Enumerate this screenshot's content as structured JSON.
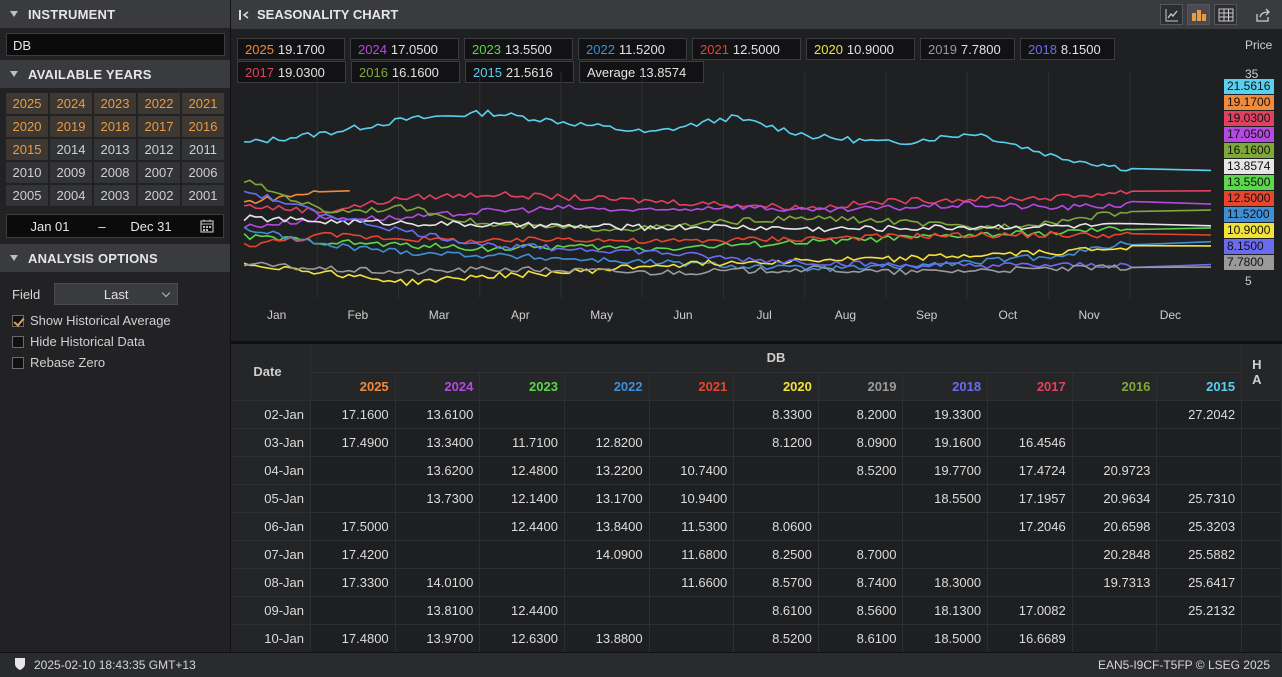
{
  "instrument": {
    "header": "INSTRUMENT",
    "value": "DB"
  },
  "years": {
    "header": "AVAILABLE YEARS",
    "list": [
      "2025",
      "2024",
      "2023",
      "2022",
      "2021",
      "2020",
      "2019",
      "2018",
      "2017",
      "2016",
      "2015",
      "2014",
      "2013",
      "2012",
      "2011",
      "2010",
      "2009",
      "2008",
      "2007",
      "2006",
      "2005",
      "2004",
      "2003",
      "2002",
      "2001"
    ],
    "selected": [
      "2025",
      "2024",
      "2023",
      "2022",
      "2021",
      "2020",
      "2019",
      "2018",
      "2017",
      "2016",
      "2015"
    ]
  },
  "date_range": {
    "from": "Jan 01",
    "sep": "–",
    "to": "Dec 31"
  },
  "analysis": {
    "header": "ANALYSIS OPTIONS",
    "field_label": "Field",
    "field_value": "Last",
    "options": [
      {
        "label": "Show Historical Average",
        "checked": true
      },
      {
        "label": "Hide Historical Data",
        "checked": false
      },
      {
        "label": "Rebase Zero",
        "checked": false
      }
    ]
  },
  "chart": {
    "header": "SEASONALITY CHART",
    "price_label": "Price",
    "tick_35": "35",
    "tick_5": "5",
    "legend": [
      {
        "name": "2025",
        "value": "19.1700",
        "color": "#f08a3c"
      },
      {
        "name": "2024",
        "value": "17.0500",
        "color": "#b44ae0"
      },
      {
        "name": "2023",
        "value": "13.5500",
        "color": "#5cd64a"
      },
      {
        "name": "2022",
        "value": "11.5200",
        "color": "#3f8fd6"
      },
      {
        "name": "2021",
        "value": "12.5000",
        "color": "#e8452f"
      },
      {
        "name": "2020",
        "value": "10.9000",
        "color": "#f2e23a"
      },
      {
        "name": "2019",
        "value": "7.7800",
        "color": "#9a9a9a"
      },
      {
        "name": "2018",
        "value": "8.1500",
        "color": "#6a6cf0"
      },
      {
        "name": "2017",
        "value": "19.0300",
        "color": "#e0415e"
      },
      {
        "name": "2016",
        "value": "16.1600",
        "color": "#7fa83a"
      },
      {
        "name": "2015",
        "value": "21.5616",
        "color": "#5ad0f0"
      },
      {
        "name": "Average",
        "value": "13.8574",
        "color": "#e6e6e6"
      }
    ],
    "price_tags": [
      {
        "value": "21.5616",
        "color": "#5ad0f0"
      },
      {
        "value": "19.1700",
        "color": "#f08a3c"
      },
      {
        "value": "19.0300",
        "color": "#e0415e"
      },
      {
        "value": "17.0500",
        "color": "#b44ae0"
      },
      {
        "value": "16.1600",
        "color": "#7fa83a"
      },
      {
        "value": "13.8574",
        "color": "#e6e6e6"
      },
      {
        "value": "13.5500",
        "color": "#5cd64a"
      },
      {
        "value": "12.5000",
        "color": "#e8452f"
      },
      {
        "value": "11.5200",
        "color": "#3f8fd6"
      },
      {
        "value": "10.9000",
        "color": "#f2e23a"
      },
      {
        "value": "8.1500",
        "color": "#6a6cf0"
      },
      {
        "value": "7.7800",
        "color": "#9a9a9a"
      }
    ],
    "months": [
      "Jan",
      "Feb",
      "Mar",
      "Apr",
      "May",
      "Jun",
      "Jul",
      "Aug",
      "Sep",
      "Oct",
      "Nov",
      "Dec"
    ]
  },
  "chart_data": {
    "type": "line",
    "ylabel": "Price",
    "ylim": [
      5,
      35
    ],
    "x": [
      "Jan",
      "Feb",
      "Mar",
      "Apr",
      "May",
      "Jun",
      "Jul",
      "Aug",
      "Sep",
      "Oct",
      "Nov",
      "Dec"
    ],
    "series": [
      {
        "name": "2015",
        "color": "#5ad0f0",
        "values": [
          26.0,
          27.5,
          29.5,
          30.5,
          29.0,
          27.5,
          29.8,
          27.0,
          26.0,
          27.5,
          24.0,
          22.0
        ]
      },
      {
        "name": "2025",
        "color": "#f08a3c",
        "values": [
          17.3,
          19.0,
          null,
          null,
          null,
          null,
          null,
          null,
          null,
          null,
          null,
          null
        ]
      },
      {
        "name": "2017",
        "color": "#e0415e",
        "values": [
          16.8,
          16.0,
          18.0,
          18.5,
          18.0,
          17.5,
          17.0,
          16.5,
          17.5,
          17.8,
          18.0,
          19.0
        ]
      },
      {
        "name": "2024",
        "color": "#b44ae0",
        "values": [
          13.7,
          15.0,
          15.0,
          16.0,
          16.5,
          16.0,
          16.8,
          16.0,
          16.5,
          17.0,
          16.5,
          17.05
        ]
      },
      {
        "name": "2016",
        "color": "#7fa83a",
        "values": [
          20.5,
          16.0,
          16.5,
          14.0,
          13.5,
          13.5,
          14.5,
          15.0,
          14.5,
          13.5,
          14.5,
          16.16
        ]
      },
      {
        "name": "Average",
        "color": "#e6e6e6",
        "values": [
          15.0,
          14.5,
          14.3,
          14.0,
          13.8,
          13.6,
          13.7,
          13.4,
          13.5,
          13.7,
          13.8,
          13.86
        ]
      },
      {
        "name": "2023",
        "color": "#5cd64a",
        "values": [
          12.3,
          11.5,
          11.0,
          10.5,
          10.8,
          10.5,
          11.0,
          11.5,
          12.0,
          12.5,
          12.8,
          13.55
        ]
      },
      {
        "name": "2021",
        "color": "#e8452f",
        "values": [
          11.0,
          12.5,
          12.0,
          11.5,
          12.0,
          11.5,
          11.8,
          12.0,
          12.3,
          12.5,
          12.5,
          12.5
        ]
      },
      {
        "name": "2022",
        "color": "#3f8fd6",
        "values": [
          13.5,
          11.0,
          10.0,
          9.5,
          9.0,
          8.5,
          8.0,
          7.5,
          7.8,
          8.5,
          9.5,
          11.52
        ]
      },
      {
        "name": "2020",
        "color": "#f2e23a",
        "values": [
          8.3,
          7.0,
          5.5,
          6.5,
          7.0,
          8.0,
          8.5,
          8.8,
          9.0,
          9.5,
          10.0,
          10.9
        ]
      },
      {
        "name": "2018",
        "color": "#6a6cf0",
        "values": [
          19.0,
          15.5,
          13.0,
          11.0,
          10.5,
          10.0,
          9.0,
          8.5,
          8.0,
          8.0,
          8.0,
          8.15
        ]
      },
      {
        "name": "2019",
        "color": "#9a9a9a",
        "values": [
          8.2,
          7.5,
          7.0,
          7.5,
          7.3,
          7.0,
          7.2,
          7.5,
          7.0,
          7.3,
          7.5,
          7.78
        ]
      }
    ]
  },
  "table": {
    "group_header": "DB",
    "date_header": "Date",
    "extra_header": "H",
    "extra_header2": "A",
    "columns": [
      {
        "year": "2025",
        "color": "#f08a3c"
      },
      {
        "year": "2024",
        "color": "#b44ae0"
      },
      {
        "year": "2023",
        "color": "#5cd64a"
      },
      {
        "year": "2022",
        "color": "#3f8fd6"
      },
      {
        "year": "2021",
        "color": "#e8452f"
      },
      {
        "year": "2020",
        "color": "#f2e23a"
      },
      {
        "year": "2019",
        "color": "#9a9a9a"
      },
      {
        "year": "2018",
        "color": "#6a6cf0"
      },
      {
        "year": "2017",
        "color": "#e0415e"
      },
      {
        "year": "2016",
        "color": "#7fa83a"
      },
      {
        "year": "2015",
        "color": "#5ad0f0"
      }
    ],
    "rows": [
      {
        "date": "02-Jan",
        "cells": [
          "17.1600",
          "13.6100",
          "",
          "",
          "",
          "8.3300",
          "8.2000",
          "19.3300",
          "",
          "",
          "27.2042"
        ]
      },
      {
        "date": "03-Jan",
        "cells": [
          "17.4900",
          "13.3400",
          "11.7100",
          "12.8200",
          "",
          "8.1200",
          "8.0900",
          "19.1600",
          "16.4546",
          "",
          ""
        ]
      },
      {
        "date": "04-Jan",
        "cells": [
          "",
          "13.6200",
          "12.4800",
          "13.2200",
          "10.7400",
          "",
          "8.5200",
          "19.7700",
          "17.4724",
          "20.9723",
          ""
        ]
      },
      {
        "date": "05-Jan",
        "cells": [
          "",
          "13.7300",
          "12.1400",
          "13.1700",
          "10.9400",
          "",
          "",
          "18.5500",
          "17.1957",
          "20.9634",
          "25.7310"
        ]
      },
      {
        "date": "06-Jan",
        "cells": [
          "17.5000",
          "",
          "12.4400",
          "13.8400",
          "11.5300",
          "8.0600",
          "",
          "",
          "17.2046",
          "20.6598",
          "25.3203"
        ]
      },
      {
        "date": "07-Jan",
        "cells": [
          "17.4200",
          "",
          "",
          "14.0900",
          "11.6800",
          "8.2500",
          "8.7000",
          "",
          "",
          "20.2848",
          "25.5882"
        ]
      },
      {
        "date": "08-Jan",
        "cells": [
          "17.3300",
          "14.0100",
          "",
          "",
          "11.6600",
          "8.5700",
          "8.7400",
          "18.3000",
          "",
          "19.7313",
          "25.6417"
        ]
      },
      {
        "date": "09-Jan",
        "cells": [
          "",
          "13.8100",
          "12.4400",
          "",
          "",
          "8.6100",
          "8.5600",
          "18.1300",
          "17.0082",
          "",
          "25.2132"
        ]
      },
      {
        "date": "10-Jan",
        "cells": [
          "17.4800",
          "13.9700",
          "12.6300",
          "13.8800",
          "",
          "8.5200",
          "8.6100",
          "18.5000",
          "16.6689",
          "",
          ""
        ]
      }
    ]
  },
  "footer": {
    "timestamp": "2025-02-10 18:43:35 GMT+13",
    "right_text": "EAN5-I9CF-T5FP  © LSEG 2025"
  }
}
